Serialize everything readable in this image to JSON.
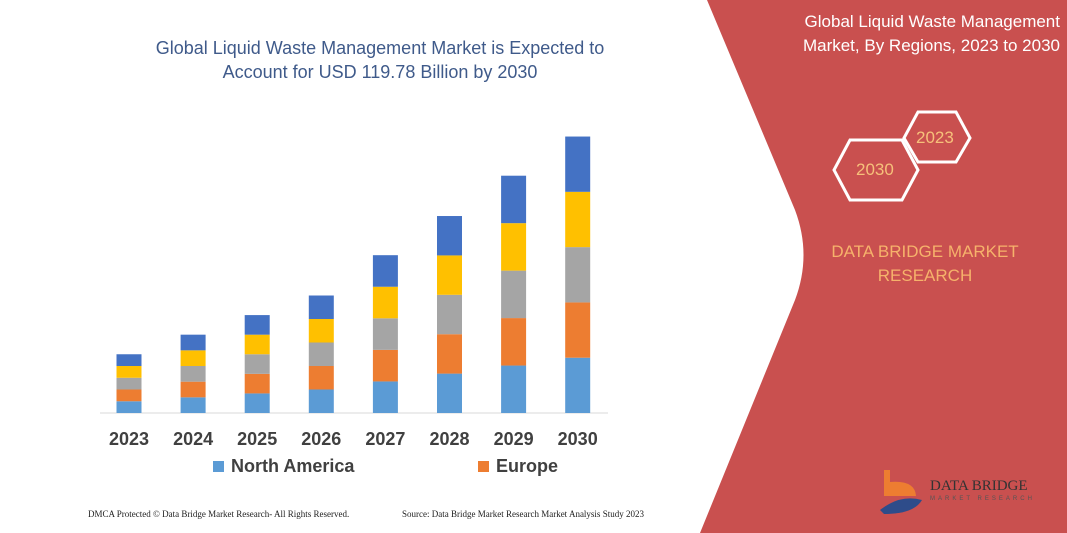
{
  "header": {
    "title_line1": "Global Liquid Waste Management Market is Expected to",
    "title_line2": "Account for USD 119.78 Billion by 2030"
  },
  "panel": {
    "title_line1": "Global Liquid Waste Management",
    "title_line2": "Market, By Regions, 2023 to 2030",
    "hex_start": "2023",
    "hex_end": "2030",
    "brand_line1": "DATA BRIDGE MARKET",
    "brand_line2": "RESEARCH",
    "logo_text": "DATA BRIDGE",
    "logo_sub": "MARKET RESEARCH",
    "color": "#C9504F"
  },
  "chart_data": {
    "type": "bar",
    "stacked": true,
    "categories": [
      "2023",
      "2024",
      "2025",
      "2026",
      "2027",
      "2028",
      "2029",
      "2030"
    ],
    "series": [
      {
        "name": "North America",
        "color": "#5B9BD5",
        "values": [
          5.1,
          6.8,
          8.5,
          10.2,
          13.7,
          17.1,
          20.6,
          24.0
        ]
      },
      {
        "name": "Europe",
        "color": "#ED7D31",
        "values": [
          5.1,
          6.8,
          8.5,
          10.2,
          13.7,
          17.1,
          20.6,
          24.0
        ]
      },
      {
        "color": "#A5A5A5",
        "values": [
          5.1,
          6.8,
          8.5,
          10.2,
          13.7,
          17.1,
          20.6,
          24.0
        ]
      },
      {
        "color": "#FFC000",
        "values": [
          5.1,
          6.8,
          8.5,
          10.2,
          13.7,
          17.1,
          20.6,
          24.0
        ]
      },
      {
        "color": "#4472C4",
        "values": [
          5.1,
          6.8,
          8.5,
          10.2,
          13.7,
          17.1,
          20.6,
          24.0
        ]
      }
    ],
    "ylim": [
      0,
      120
    ],
    "grid": false,
    "legend_placement": "bottom"
  },
  "footer": {
    "left": "DMCA Protected © Data Bridge Market Research- All Rights Reserved.",
    "right": "Source: Data Bridge Market Research Market Analysis Study 2023"
  }
}
